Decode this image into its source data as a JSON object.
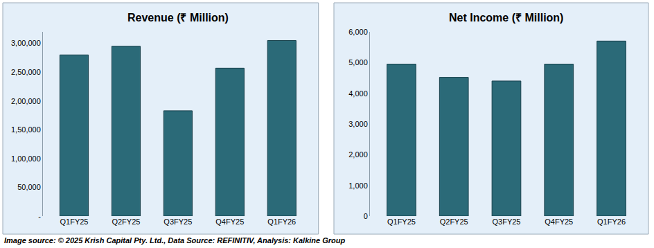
{
  "chart_data": [
    {
      "type": "bar",
      "title": "Revenue (₹ Million)",
      "categories": [
        "Q1FY25",
        "Q2FY25",
        "Q3FY25",
        "Q4FY25",
        "Q1FY26"
      ],
      "values": [
        280000,
        295000,
        183000,
        257000,
        305000
      ],
      "color": "#2b6a78",
      "ylim": [
        0,
        320000
      ],
      "yticks": [
        {
          "value": 0,
          "label": "-"
        },
        {
          "value": 50000,
          "label": "50,000"
        },
        {
          "value": 100000,
          "label": "1,00,000"
        },
        {
          "value": 150000,
          "label": "1,50,000"
        },
        {
          "value": 200000,
          "label": "2,00,000"
        },
        {
          "value": 250000,
          "label": "2,50,000"
        },
        {
          "value": 300000,
          "label": "3,00,000"
        }
      ],
      "grid": false
    },
    {
      "type": "bar",
      "title": "Net Income (₹ Million)",
      "categories": [
        "Q1FY25",
        "Q2FY25",
        "Q3FY25",
        "Q4FY25",
        "Q1FY26"
      ],
      "values": [
        4950,
        4520,
        4400,
        4950,
        5700
      ],
      "color": "#2b6a78",
      "ylim": [
        0,
        6000
      ],
      "yticks": [
        0,
        {
          "value": 1000,
          "label": "1,000"
        },
        {
          "value": 2000,
          "label": "2,000"
        },
        {
          "value": 3000,
          "label": "3,000"
        },
        {
          "value": 4000,
          "label": "4,000"
        },
        {
          "value": 5000,
          "label": "5,000"
        },
        {
          "value": 6000,
          "label": "6,000"
        }
      ],
      "grid": false
    }
  ],
  "footer": "Image source: © 2025 Krish Capital Pty. Ltd., Data Source: REFINITIV, Analysis: Kalkine Group"
}
